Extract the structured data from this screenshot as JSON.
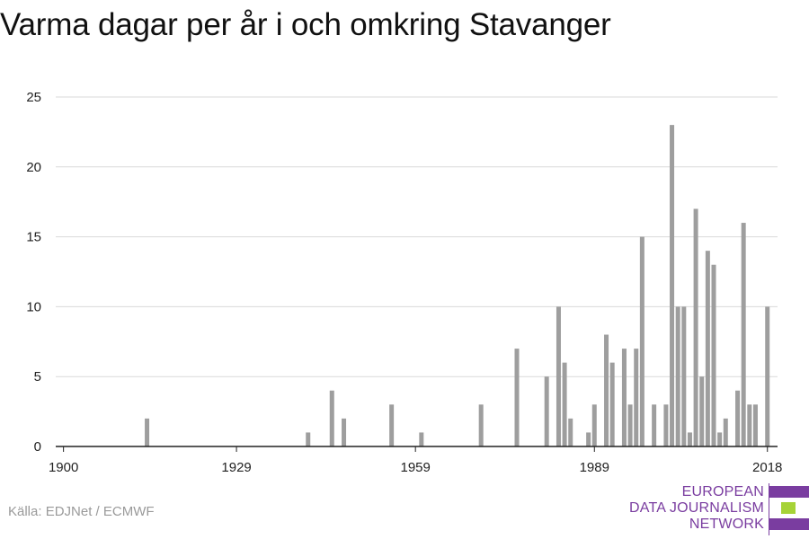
{
  "title": "Varma dagar per år i och omkring Stavanger",
  "source": "Källa: EDJNet / ECMWF",
  "logo": {
    "lines": [
      "EUROPEAN",
      "DATA JOURNALISM",
      "NETWORK"
    ],
    "colors": {
      "purple": "#7a3da0",
      "green": "#a6d337"
    }
  },
  "chart_data": {
    "type": "bar",
    "title": "Varma dagar per år i och omkring Stavanger",
    "xlabel": "",
    "ylabel": "",
    "xlim": [
      1899,
      2020
    ],
    "ylim": [
      0,
      25
    ],
    "xticks": [
      1900,
      1929,
      1959,
      1989,
      2018
    ],
    "yticks": [
      0,
      5,
      10,
      15,
      20,
      25
    ],
    "grid": true,
    "bar_color": "#9e9e9e",
    "x": [
      1914,
      1941,
      1945,
      1947,
      1955,
      1960,
      1970,
      1976,
      1981,
      1983,
      1984,
      1985,
      1988,
      1989,
      1991,
      1992,
      1994,
      1995,
      1996,
      1997,
      1999,
      2001,
      2002,
      2003,
      2004,
      2005,
      2006,
      2007,
      2008,
      2009,
      2010,
      2011,
      2013,
      2014,
      2015,
      2016,
      2018
    ],
    "values": [
      2,
      1,
      4,
      2,
      3,
      1,
      3,
      7,
      5,
      10,
      6,
      2,
      1,
      3,
      8,
      6,
      7,
      3,
      7,
      15,
      3,
      3,
      23,
      10,
      10,
      1,
      17,
      5,
      14,
      13,
      1,
      2,
      4,
      16,
      3,
      3,
      10
    ]
  }
}
